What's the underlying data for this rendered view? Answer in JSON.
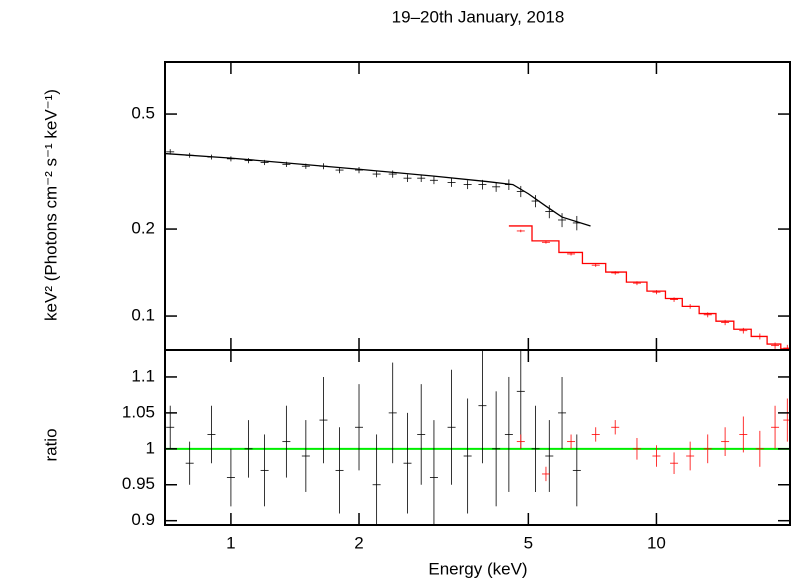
{
  "chart_data": [
    {
      "type": "scatter",
      "title": "19–20th January, 2018",
      "ylabel": "keV² (Photons cm⁻² s⁻¹ keV⁻¹)",
      "xscale": "log",
      "yscale": "log",
      "xlim": [
        0.7,
        20.6
      ],
      "ylim": [
        0.0763,
        0.757
      ],
      "xticks": [
        1,
        2,
        5,
        10
      ],
      "show_xtick_labels": false,
      "yticks": [
        0.1,
        0.2,
        0.5
      ],
      "series": [
        {
          "mode": "errorbar",
          "color": "#000000",
          "x": [
            0.72,
            0.8,
            0.9,
            1.0,
            1.1,
            1.2,
            1.35,
            1.5,
            1.65,
            1.8,
            2.0,
            2.2,
            2.4,
            2.6,
            2.8,
            3.0,
            3.3,
            3.6,
            3.9,
            4.2,
            4.5,
            4.8,
            5.2,
            5.6,
            6.0,
            6.5
          ],
          "values": [
            0.37,
            0.36,
            0.355,
            0.35,
            0.345,
            0.34,
            0.335,
            0.33,
            0.33,
            0.32,
            0.32,
            0.31,
            0.31,
            0.3,
            0.3,
            0.295,
            0.29,
            0.285,
            0.285,
            0.28,
            0.285,
            0.27,
            0.25,
            0.23,
            0.215,
            0.21
          ],
          "errors": [
            0.008,
            0.007,
            0.007,
            0.007,
            0.007,
            0.007,
            0.007,
            0.007,
            0.008,
            0.008,
            0.008,
            0.008,
            0.009,
            0.009,
            0.009,
            0.009,
            0.01,
            0.01,
            0.011,
            0.011,
            0.012,
            0.012,
            0.012,
            0.012,
            0.012,
            0.012
          ]
        },
        {
          "mode": "line",
          "color": "#000000",
          "x": [
            0.7,
            1,
            2,
            3,
            4,
            4.6,
            5,
            5.5,
            6,
            7
          ],
          "values": [
            0.365,
            0.352,
            0.322,
            0.305,
            0.292,
            0.285,
            0.265,
            0.24,
            0.22,
            0.205
          ]
        },
        {
          "mode": "errorbar",
          "color": "#ff0000",
          "x": [
            4.8,
            5.5,
            6.3,
            7.2,
            8.0,
            9.0,
            10,
            11,
            12,
            13.2,
            14.5,
            16,
            17.5,
            19,
            20.3
          ],
          "values": [
            0.197,
            0.18,
            0.164,
            0.15,
            0.141,
            0.13,
            0.121,
            0.114,
            0.108,
            0.101,
            0.095,
            0.089,
            0.085,
            0.079,
            0.0775
          ],
          "errors": [
            0.002,
            0.002,
            0.002,
            0.002,
            0.002,
            0.002,
            0.002,
            0.002,
            0.002,
            0.002,
            0.002,
            0.002,
            0.002,
            0.002,
            0.002
          ]
        },
        {
          "mode": "step",
          "color": "#ff0000",
          "bins": [
            4.5,
            5.1,
            5.9,
            6.7,
            7.6,
            8.5,
            9.5,
            10.5,
            11.5,
            12.6,
            13.8,
            15.2,
            16.7,
            18.2,
            19.6,
            20.6
          ],
          "values": [
            0.205,
            0.182,
            0.166,
            0.152,
            0.142,
            0.131,
            0.122,
            0.115,
            0.108,
            0.102,
            0.096,
            0.09,
            0.085,
            0.08,
            0.077
          ]
        }
      ]
    },
    {
      "type": "scatter",
      "xlabel": "Energy (keV)",
      "ylabel": "ratio",
      "xscale": "log",
      "yscale": "linear",
      "xlim": [
        0.7,
        20.6
      ],
      "ylim": [
        0.894,
        1.1375
      ],
      "xticks": [
        1,
        2,
        5,
        10
      ],
      "show_xtick_labels": true,
      "yticks": [
        0.9,
        0.95,
        1,
        1.05,
        1.1
      ],
      "reference_line": {
        "value": 1,
        "color": "#00ee00"
      },
      "series": [
        {
          "mode": "errorbar",
          "color": "#000000",
          "x": [
            0.72,
            0.8,
            0.9,
            1.0,
            1.1,
            1.2,
            1.35,
            1.5,
            1.65,
            1.8,
            2.0,
            2.2,
            2.4,
            2.6,
            2.8,
            3.0,
            3.3,
            3.6,
            3.9,
            4.2,
            4.5,
            4.8,
            5.2,
            5.6,
            6.0,
            6.5
          ],
          "values": [
            1.03,
            0.98,
            1.02,
            0.96,
            1.0,
            0.97,
            1.01,
            0.99,
            1.04,
            0.97,
            1.03,
            0.95,
            1.05,
            0.98,
            1.02,
            0.96,
            1.03,
            0.99,
            1.06,
            1.0,
            1.02,
            1.08,
            1.0,
            0.99,
            1.05,
            0.97
          ],
          "errors": [
            0.03,
            0.03,
            0.04,
            0.04,
            0.04,
            0.05,
            0.05,
            0.05,
            0.06,
            0.06,
            0.06,
            0.07,
            0.07,
            0.07,
            0.07,
            0.08,
            0.08,
            0.08,
            0.08,
            0.08,
            0.08,
            0.08,
            0.06,
            0.05,
            0.05,
            0.05
          ]
        },
        {
          "mode": "errorbar",
          "color": "#ff0000",
          "x": [
            4.8,
            5.5,
            6.3,
            7.2,
            8.0,
            9.0,
            10,
            11,
            12,
            13.2,
            14.5,
            16,
            17.5,
            19,
            20.3
          ],
          "values": [
            1.01,
            0.965,
            1.01,
            1.02,
            1.03,
            1.0,
            0.99,
            0.98,
            0.99,
            1.0,
            1.01,
            1.02,
            1.0,
            1.03,
            1.04
          ],
          "errors": [
            0.01,
            0.01,
            0.01,
            0.01,
            0.01,
            0.015,
            0.015,
            0.015,
            0.02,
            0.02,
            0.02,
            0.025,
            0.025,
            0.03,
            0.03
          ]
        }
      ]
    }
  ]
}
